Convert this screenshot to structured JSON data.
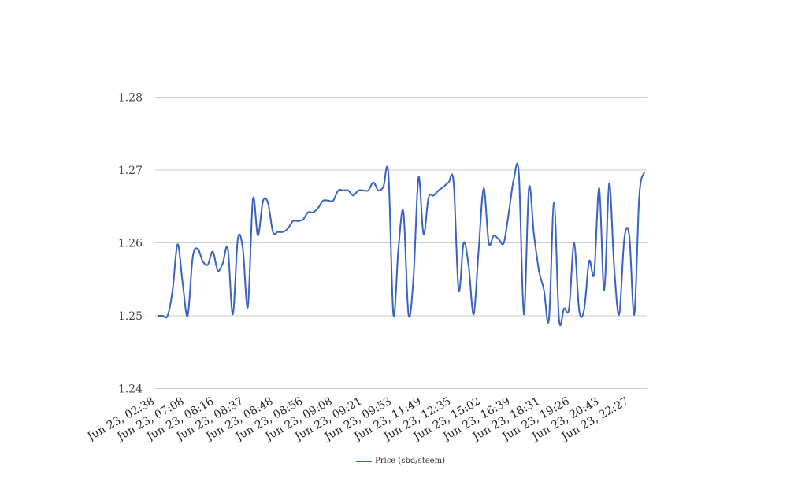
{
  "chart_data": {
    "type": "line",
    "title": "",
    "xlabel": "",
    "ylabel": "",
    "ylim": [
      1.24,
      1.28
    ],
    "y_ticks": [
      "1.24",
      "1.25",
      "1.26",
      "1.27",
      "1.28"
    ],
    "grid": true,
    "legend_position": "bottom",
    "x_tick_labels": [
      "Jun 23, 02:38",
      "Jun 23, 07:08",
      "Jun 23, 08:16",
      "Jun 23, 08:37",
      "Jun 23, 08:48",
      "Jun 23, 08:56",
      "Jun 23, 09:08",
      "Jun 23, 09:21",
      "Jun 23, 09:53",
      "Jun 23, 11:49",
      "Jun 23, 12:35",
      "Jun 23, 15:02",
      "Jun 23, 16:39",
      "Jun 23, 18:31",
      "Jun 23, 19:26",
      "Jun 23, 20:43",
      "Jun 23, 22:27"
    ],
    "series": [
      {
        "name": "Price (sbd/steem)",
        "color": "#3a62c0",
        "values": [
          1.25,
          1.25,
          1.25,
          1.2535,
          1.2598,
          1.2545,
          1.25,
          1.258,
          1.2592,
          1.2575,
          1.257,
          1.2588,
          1.2562,
          1.2572,
          1.2592,
          1.2502,
          1.2605,
          1.2592,
          1.2512,
          1.266,
          1.261,
          1.2657,
          1.2655,
          1.2615,
          1.2615,
          1.2615,
          1.262,
          1.263,
          1.263,
          1.2632,
          1.2642,
          1.2642,
          1.2648,
          1.2658,
          1.2658,
          1.2658,
          1.2672,
          1.2672,
          1.2672,
          1.2665,
          1.2672,
          1.2672,
          1.2672,
          1.2683,
          1.2672,
          1.2677,
          1.2695,
          1.2502,
          1.2592,
          1.2642,
          1.2502,
          1.2552,
          1.269,
          1.2612,
          1.2662,
          1.2665,
          1.2672,
          1.2677,
          1.2683,
          1.2683,
          1.2535,
          1.26,
          1.2568,
          1.2502,
          1.2592,
          1.2675,
          1.26,
          1.261,
          1.2605,
          1.26,
          1.2642,
          1.2688,
          1.2695,
          1.2502,
          1.2675,
          1.2612,
          1.2562,
          1.2535,
          1.2495,
          1.2655,
          1.2495,
          1.251,
          1.251,
          1.26,
          1.2508,
          1.2508,
          1.2575,
          1.2558,
          1.2675,
          1.2535,
          1.2682,
          1.2565,
          1.2502,
          1.2605,
          1.261,
          1.2502,
          1.2665,
          1.2697
        ]
      }
    ]
  }
}
